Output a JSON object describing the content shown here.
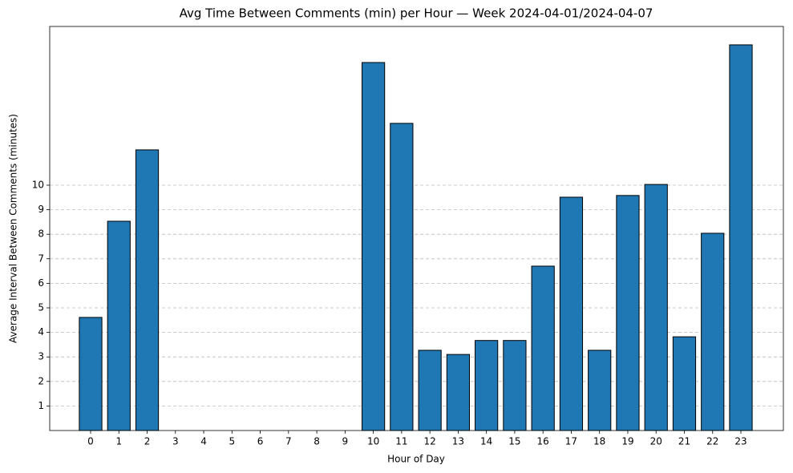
{
  "chart_data": {
    "type": "bar",
    "title": "Avg Time Between Comments (min) per Hour — Week 2024-04-01/2024-04-07",
    "x_label": "Hour of Day",
    "y_label": "Average Interval Between Comments (minutes)",
    "categories": [
      "0",
      "1",
      "2",
      "3",
      "4",
      "5",
      "6",
      "7",
      "8",
      "9",
      "10",
      "11",
      "12",
      "13",
      "14",
      "15",
      "16",
      "17",
      "18",
      "19",
      "20",
      "21",
      "22",
      "23"
    ],
    "values": [
      4.61,
      8.53,
      11.44,
      0,
      0,
      0,
      0,
      0,
      0,
      0,
      15.0,
      12.52,
      3.27,
      3.1,
      3.67,
      3.67,
      6.7,
      9.51,
      3.27,
      9.58,
      10.03,
      3.82,
      8.04,
      15.72
    ],
    "color": "#1f77b4",
    "edgecolor": "#000000",
    "ylim": [
      0,
      16.47
    ],
    "yticks": [
      1,
      2,
      3,
      4,
      5,
      6,
      7,
      8,
      9,
      10
    ],
    "grid": true
  }
}
